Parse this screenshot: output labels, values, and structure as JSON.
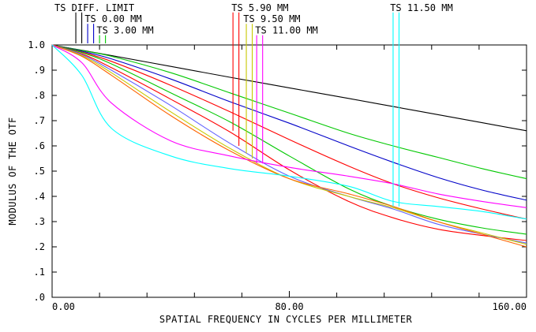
{
  "chart_data": {
    "type": "line",
    "ylabel": "MODULUS OF THE OTF",
    "xlabel": "SPATIAL FREQUENCY IN CYCLES PER MILLIMETER",
    "xlim": [
      0,
      160
    ],
    "ylim": [
      0,
      1
    ],
    "x_ticks": [
      {
        "v": 0,
        "label": "0.00"
      },
      {
        "v": 80,
        "label": "80.00"
      },
      {
        "v": 160,
        "label": "160.00"
      }
    ],
    "x_minor_ticks": [
      16,
      32,
      48,
      64,
      96,
      112,
      128,
      144
    ],
    "y_ticks": [
      {
        "v": 0,
        "label": ".0"
      },
      {
        "v": 0.1,
        "label": ".1"
      },
      {
        "v": 0.2,
        "label": ".2"
      },
      {
        "v": 0.3,
        "label": ".3"
      },
      {
        "v": 0.4,
        "label": ".4"
      },
      {
        "v": 0.5,
        "label": ".5"
      },
      {
        "v": 0.6,
        "label": ".6"
      },
      {
        "v": 0.7,
        "label": ".7"
      },
      {
        "v": 0.8,
        "label": ".8"
      },
      {
        "v": 0.9,
        "label": ".9"
      },
      {
        "v": 1.0,
        "label": "1.0"
      }
    ],
    "x_samples": [
      0,
      10,
      20,
      40,
      60,
      80,
      100,
      115,
      130,
      145,
      160
    ],
    "series": [
      {
        "color": "#000000",
        "values": [
          1.0,
          0.979,
          0.958,
          0.915,
          0.872,
          0.83,
          0.788,
          0.756,
          0.724,
          0.692,
          0.66
        ]
      },
      {
        "color": "#00c800",
        "values": [
          1.0,
          0.978,
          0.955,
          0.89,
          0.81,
          0.73,
          0.65,
          0.6,
          0.555,
          0.51,
          0.47
        ]
      },
      {
        "color": "#0000c8",
        "values": [
          1.0,
          0.975,
          0.945,
          0.865,
          0.775,
          0.69,
          0.6,
          0.535,
          0.475,
          0.425,
          0.385
        ]
      },
      {
        "color": "#ff0000",
        "values": [
          1.0,
          0.972,
          0.935,
          0.84,
          0.735,
          0.625,
          0.52,
          0.45,
          0.395,
          0.35,
          0.31
        ]
      },
      {
        "color": "#00c800",
        "values": [
          1.0,
          0.97,
          0.925,
          0.81,
          0.695,
          0.56,
          0.43,
          0.36,
          0.31,
          0.275,
          0.25
        ]
      },
      {
        "color": "#ff0000",
        "values": [
          1.0,
          0.965,
          0.91,
          0.785,
          0.655,
          0.505,
          0.38,
          0.315,
          0.27,
          0.245,
          0.225
        ]
      },
      {
        "color": "#6464ff",
        "values": [
          1.0,
          0.962,
          0.9,
          0.76,
          0.61,
          0.48,
          0.4,
          0.35,
          0.29,
          0.25,
          0.215
        ]
      },
      {
        "color": "#c8c800",
        "values": [
          1.0,
          0.958,
          0.89,
          0.735,
          0.59,
          0.47,
          0.4,
          0.355,
          0.3,
          0.255,
          0.21
        ]
      },
      {
        "color": "#ff6400",
        "values": [
          1.0,
          0.955,
          0.88,
          0.72,
          0.58,
          0.47,
          0.41,
          0.36,
          0.3,
          0.25,
          0.2
        ]
      },
      {
        "color": "#ff00ff",
        "values": [
          1.0,
          0.93,
          0.77,
          0.62,
          0.56,
          0.515,
          0.48,
          0.45,
          0.41,
          0.38,
          0.355
        ]
      },
      {
        "color": "#00ffff",
        "values": [
          1.0,
          0.88,
          0.67,
          0.56,
          0.51,
          0.48,
          0.44,
          0.38,
          0.36,
          0.34,
          0.31
        ]
      }
    ],
    "annotations": [
      {
        "text": "TS DIFF. LIMIT",
        "labelX": 0.8,
        "labelY": 1.135,
        "marks": [
          {
            "x": 8,
            "color": "#000000"
          },
          {
            "x": 10,
            "color": "#000000"
          }
        ]
      },
      {
        "text": "TS 0.00 MM",
        "labelX": 11,
        "labelY": 1.09,
        "marks": [
          {
            "x": 12,
            "color": "#0000c8"
          },
          {
            "x": 14,
            "color": "#0000c8"
          }
        ]
      },
      {
        "text": "TS 3.00 MM",
        "labelX": 15,
        "labelY": 1.045,
        "marks": [
          {
            "x": 16,
            "color": "#00c800"
          },
          {
            "x": 18,
            "color": "#00c800"
          }
        ]
      },
      {
        "text": "TS 5.90 MM",
        "labelX": 60.5,
        "labelY": 1.135,
        "marks": [
          {
            "x": 61,
            "color": "#ff0000",
            "y": 0.66
          },
          {
            "x": 63,
            "color": "#ff0000",
            "y": 0.6
          }
        ]
      },
      {
        "text": "TS 9.50 MM",
        "labelX": 64.5,
        "labelY": 1.09,
        "marks": [
          {
            "x": 65.5,
            "color": "#c8c800",
            "y": 0.57
          },
          {
            "x": 67.5,
            "color": "#c8c800",
            "y": 0.55
          }
        ]
      },
      {
        "text": "TS 11.00 MM",
        "labelX": 68.5,
        "labelY": 1.045,
        "marks": [
          {
            "x": 69,
            "color": "#ff00ff",
            "y": 0.53
          },
          {
            "x": 71,
            "color": "#ff00ff",
            "y": 0.53
          }
        ]
      },
      {
        "text": "TS 11.50 MM",
        "labelX": 114,
        "labelY": 1.135,
        "marks": [
          {
            "x": 115,
            "color": "#00ffff",
            "y": 0.36
          },
          {
            "x": 117,
            "color": "#00ffff",
            "y": 0.36
          }
        ]
      }
    ]
  }
}
